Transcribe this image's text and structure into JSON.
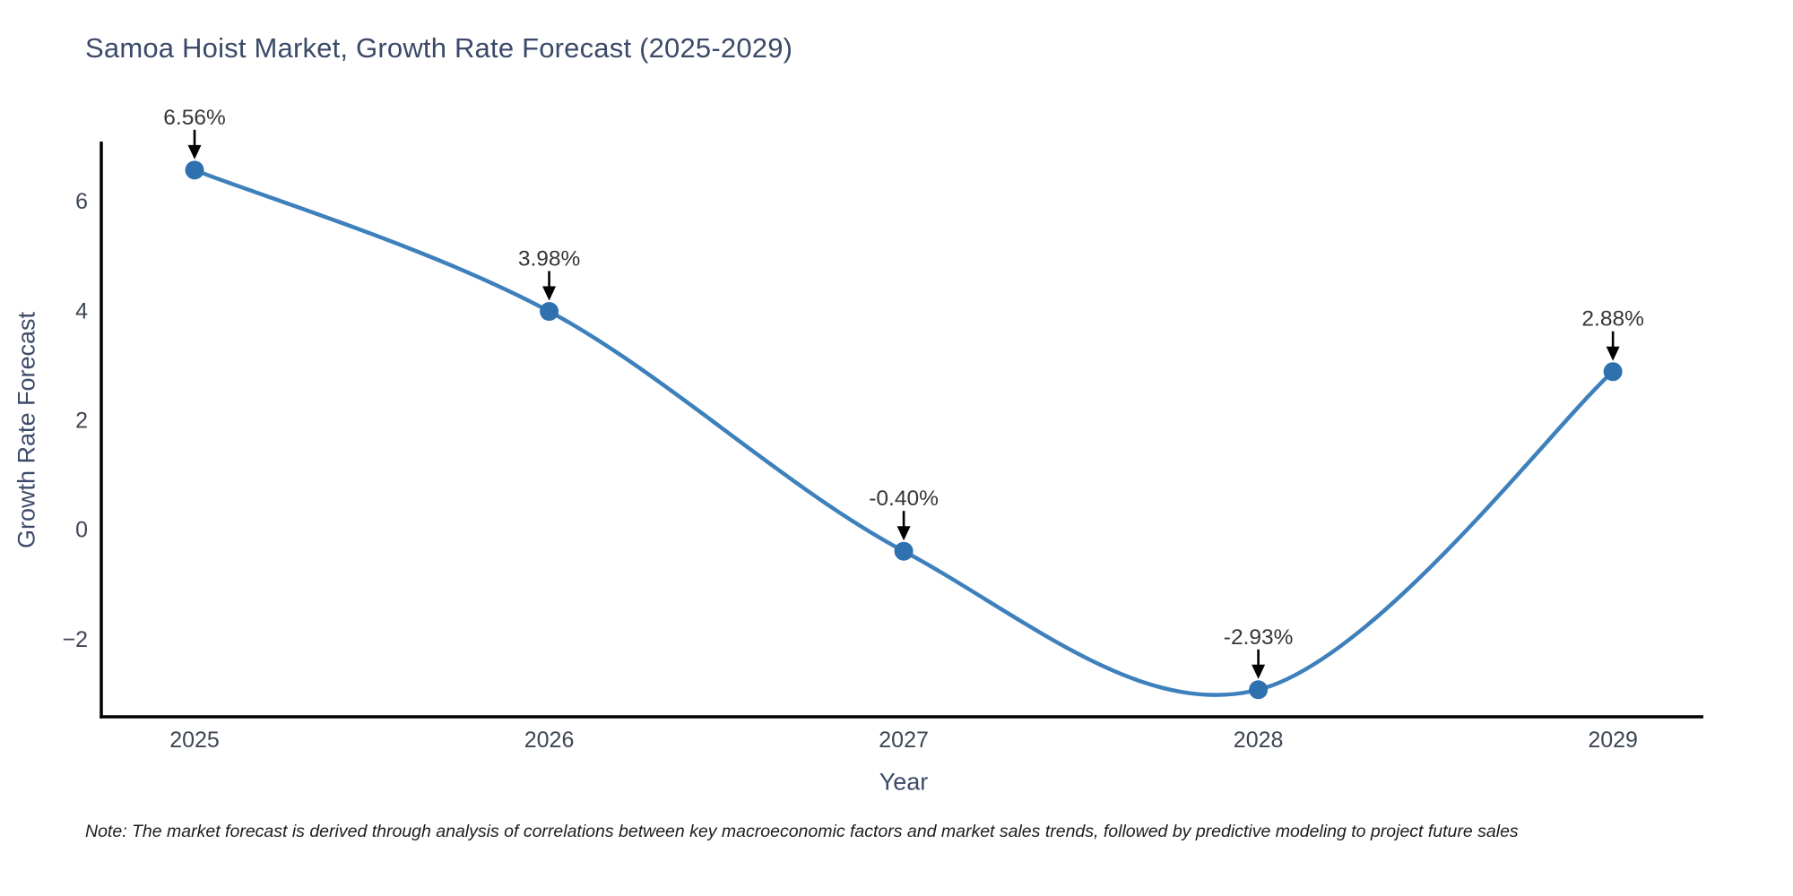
{
  "title": "Samoa Hoist Market, Growth Rate Forecast (2025-2029)",
  "note": "Note: The market forecast is derived through analysis of correlations between key macroeconomic factors and market sales trends, followed by predictive modeling to project future sales",
  "chart_data": {
    "type": "line",
    "line_shape": "spline",
    "title": "Samoa Hoist Market, Growth Rate Forecast (2025-2029)",
    "xlabel": "Year",
    "ylabel": "Growth Rate Forecast",
    "categories": [
      "2025",
      "2026",
      "2027",
      "2028",
      "2029"
    ],
    "x": [
      2025,
      2026,
      2027,
      2028,
      2029
    ],
    "values": [
      6.56,
      3.98,
      -0.4,
      -2.93,
      2.88
    ],
    "point_labels": [
      "6.56%",
      "3.98%",
      "-0.40%",
      "-2.93%",
      "2.88%"
    ],
    "yticks": [
      -2,
      0,
      2,
      4,
      6
    ],
    "xlim": [
      2024.737,
      2029.255
    ],
    "ylim": [
      -3.424,
      7.081
    ],
    "grid": false,
    "legend": false,
    "markers": true,
    "colors": {
      "line": "#3e80bc",
      "marker": "#2e71ae",
      "axis": "#000000",
      "title_text": "#3b4a68",
      "tick_text": "#3d4653",
      "annotation_text": "#363636",
      "annotation_arrow": "#000000",
      "background": "#ffffff"
    }
  }
}
